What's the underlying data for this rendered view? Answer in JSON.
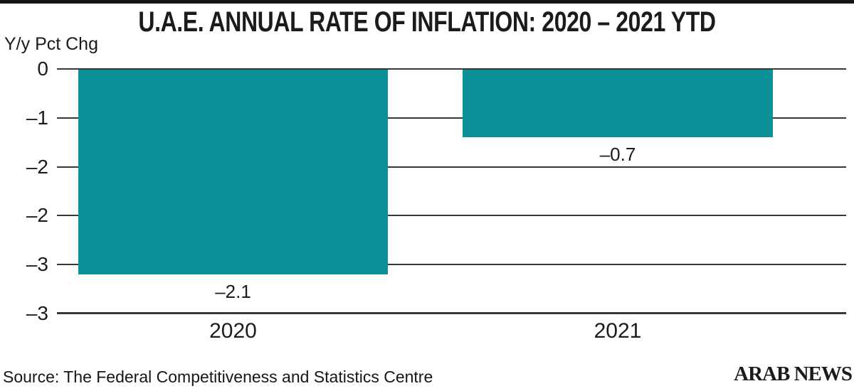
{
  "chart_data": {
    "type": "bar",
    "title": "U.A.E. ANNUAL RATE OF INFLATION: 2020 – 2021 YTD",
    "ylabel": "Y/y Pct Chg",
    "categories": [
      "2020",
      "2021"
    ],
    "values": [
      -2.1,
      -0.7
    ],
    "value_labels": [
      "–2.1",
      "–0.7"
    ],
    "ytick_labels": [
      "0",
      "–1",
      "–2",
      "–2",
      "–3",
      "–3"
    ],
    "ylim": [
      0,
      -2.5
    ],
    "grid": "horizontal",
    "legend": "none",
    "bar_color": "#0A9096",
    "gridline_color": "#383838"
  },
  "footer": {
    "source": "Source: The Federal Competitiveness and Statistics Centre",
    "brand": "ARAB NEWS"
  }
}
